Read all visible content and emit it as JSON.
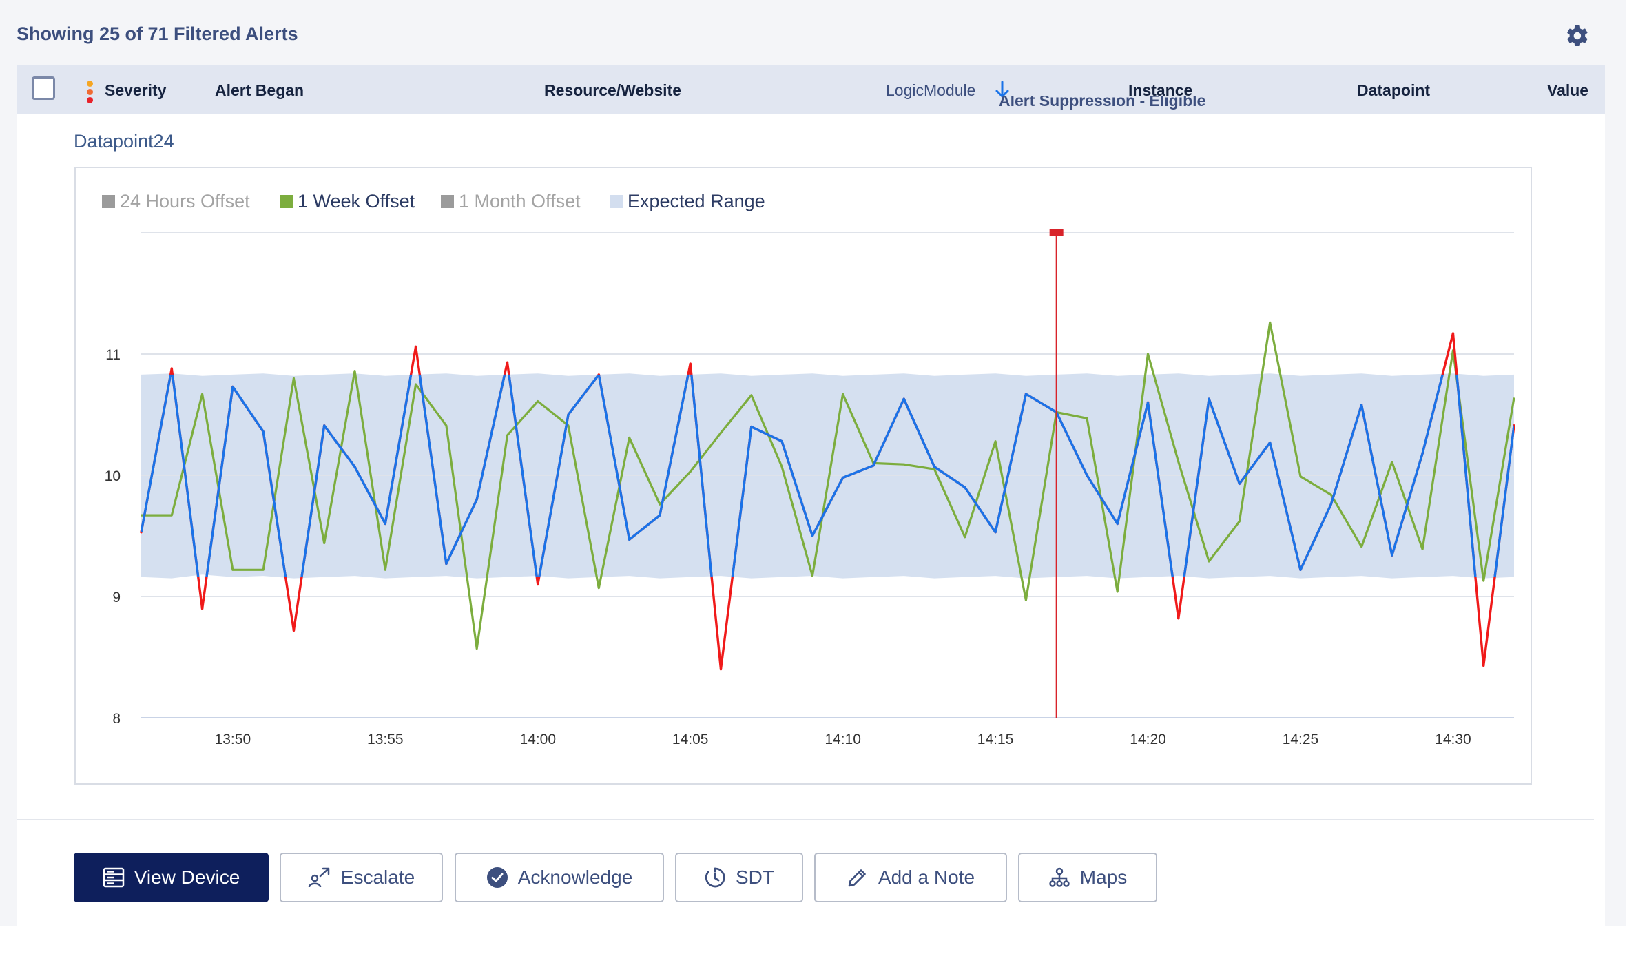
{
  "header": {
    "title": "Showing 25 of 71 Filtered Alerts",
    "settings_icon": "gear-icon"
  },
  "table": {
    "columns": [
      "Severity",
      "Alert Began",
      "Resource/Website",
      "LogicModule",
      "Instance",
      "Datapoint",
      "Value"
    ],
    "sorted_column": "LogicModule",
    "sort_direction": "descending",
    "severity_colors": [
      "#f5a623",
      "#f06a32",
      "#e8222b"
    ],
    "partial_row_text": "Alert Suppression - Eligible"
  },
  "datapoint_title": "Datapoint24",
  "chart_data": {
    "type": "line",
    "legend": [
      {
        "name": "24 Hours Offset",
        "color": "#9b9b9b",
        "active": false
      },
      {
        "name": "1 Week Offset",
        "color": "#7cad3e",
        "active": true
      },
      {
        "name": "1 Month Offset",
        "color": "#9b9b9b",
        "active": false
      },
      {
        "name": "Expected Range",
        "color": "#d3deef",
        "active": true
      }
    ],
    "xlabel": "",
    "ylabel": "",
    "x_ticks": [
      "13:50",
      "13:55",
      "14:00",
      "14:05",
      "14:10",
      "14:15",
      "14:20",
      "14:25",
      "14:30"
    ],
    "y_ticks": [
      8,
      9,
      10,
      11
    ],
    "ylim": [
      8,
      12
    ],
    "x_range": [
      "13:47",
      "14:32"
    ],
    "grid": true,
    "alert_time": "14:17",
    "series": [
      {
        "name": "",
        "color": "#1a73e8",
        "out_of_range_color": "#f01a1a",
        "x": [
          "13:47",
          "13:48",
          "13:49",
          "13:50",
          "13:51",
          "13:52",
          "13:53",
          "13:54",
          "13:55",
          "13:56",
          "13:57",
          "13:58",
          "13:59",
          "14:00",
          "14:01",
          "14:02",
          "14:03",
          "14:04",
          "14:05",
          "14:06",
          "14:07",
          "14:08",
          "14:09",
          "14:10",
          "14:11",
          "14:12",
          "14:13",
          "14:14",
          "14:15",
          "14:16",
          "14:17",
          "14:18",
          "14:19",
          "14:20",
          "14:21",
          "14:22",
          "14:23",
          "14:24",
          "14:25",
          "14:26",
          "14:27",
          "14:28",
          "14:29",
          "14:30",
          "14:31",
          "14:32"
        ],
        "values": [
          9.53,
          10.88,
          8.9,
          10.73,
          10.36,
          8.72,
          10.41,
          10.07,
          9.6,
          11.06,
          9.27,
          9.8,
          10.93,
          9.1,
          10.5,
          10.83,
          9.47,
          9.67,
          10.92,
          8.4,
          10.4,
          10.28,
          9.5,
          9.98,
          10.08,
          10.63,
          10.07,
          9.9,
          9.53,
          10.67,
          10.52,
          10,
          9.6,
          10.6,
          8.82,
          10.63,
          9.93,
          10.27,
          9.22,
          9.76,
          10.58,
          9.34,
          10.18,
          11.17,
          8.43,
          10.41
        ]
      },
      {
        "name": "1 Week Offset",
        "color": "#7cad3e",
        "x": [
          "13:47",
          "13:48",
          "13:49",
          "13:50",
          "13:51",
          "13:52",
          "13:53",
          "13:54",
          "13:55",
          "13:56",
          "13:57",
          "13:58",
          "13:59",
          "14:00",
          "14:01",
          "14:02",
          "14:03",
          "14:04",
          "14:05",
          "14:06",
          "14:07",
          "14:08",
          "14:09",
          "14:10",
          "14:11",
          "14:12",
          "14:13",
          "14:14",
          "14:15",
          "14:16",
          "14:17",
          "14:18",
          "14:19",
          "14:20",
          "14:21",
          "14:22",
          "14:23",
          "14:24",
          "14:25",
          "14:26",
          "14:27",
          "14:28",
          "14:29",
          "14:30",
          "14:31",
          "14:32"
        ],
        "values": [
          9.67,
          9.67,
          10.67,
          9.22,
          9.22,
          10.8,
          9.44,
          10.86,
          9.22,
          10.75,
          10.41,
          8.57,
          10.33,
          10.61,
          10.41,
          9.07,
          10.31,
          9.76,
          10.03,
          10.35,
          10.66,
          10.07,
          9.17,
          10.67,
          10.1,
          10.09,
          10.05,
          9.49,
          10.28,
          8.97,
          10.52,
          10.47,
          9.04,
          11,
          10.11,
          9.29,
          9.62,
          11.26,
          9.99,
          9.84,
          9.41,
          10.11,
          9.39,
          11.03,
          9.13,
          10.64
        ]
      }
    ],
    "expected_range": {
      "lower": [
        9.16,
        9.15,
        9.18,
        9.16,
        9.17,
        9.15,
        9.16,
        9.17,
        9.15,
        9.16,
        9.17,
        9.15,
        9.16,
        9.17,
        9.15,
        9.16,
        9.17,
        9.15,
        9.16,
        9.17,
        9.15,
        9.16,
        9.17,
        9.15,
        9.16,
        9.17,
        9.15,
        9.16,
        9.17,
        9.15,
        9.16,
        9.17,
        9.15,
        9.16,
        9.17,
        9.15,
        9.16,
        9.17,
        9.15,
        9.16,
        9.17,
        9.15,
        9.16,
        9.17,
        9.15,
        9.16
      ],
      "upper": [
        10.83,
        10.84,
        10.82,
        10.83,
        10.84,
        10.82,
        10.83,
        10.84,
        10.82,
        10.83,
        10.84,
        10.82,
        10.83,
        10.84,
        10.82,
        10.83,
        10.84,
        10.82,
        10.83,
        10.84,
        10.82,
        10.83,
        10.84,
        10.82,
        10.83,
        10.84,
        10.82,
        10.83,
        10.84,
        10.82,
        10.83,
        10.84,
        10.82,
        10.83,
        10.84,
        10.82,
        10.83,
        10.84,
        10.82,
        10.83,
        10.84,
        10.82,
        10.83,
        10.84,
        10.82,
        10.83
      ]
    }
  },
  "actions": {
    "view_device": "View Device",
    "escalate": "Escalate",
    "acknowledge": "Acknowledge",
    "sdt": "SDT",
    "add_note": "Add a Note",
    "maps": "Maps"
  },
  "action_icons": [
    "server-icon",
    "escalate-icon",
    "check-circle-icon",
    "timer-icon",
    "pencil-icon",
    "sitemap-icon"
  ]
}
